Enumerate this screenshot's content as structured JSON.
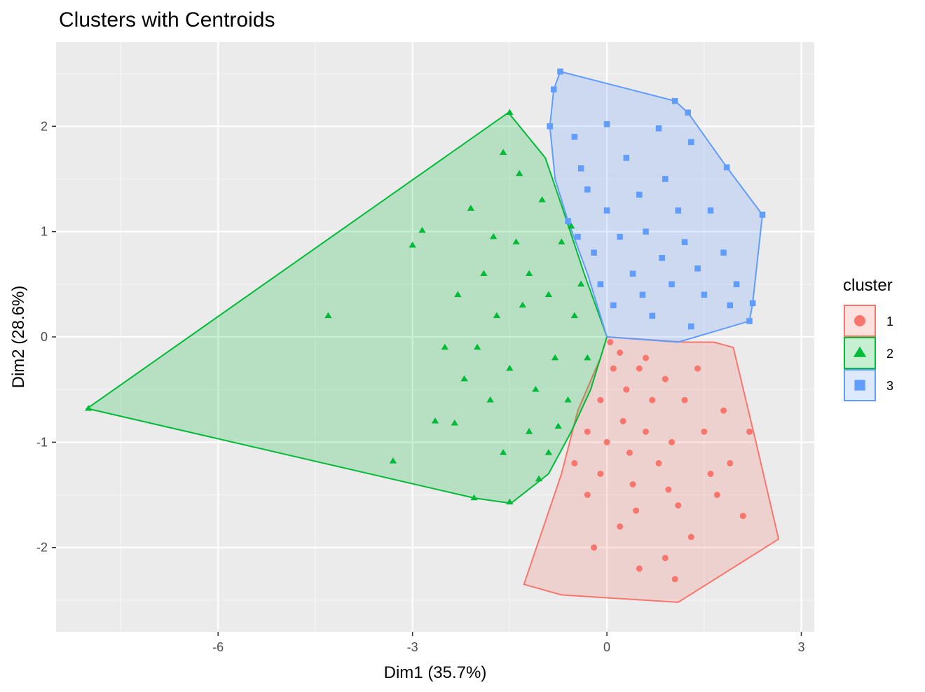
{
  "chart_data": {
    "type": "scatter",
    "title": "Clusters with Centroids",
    "xlabel": "Dim1 (35.7%)",
    "ylabel": "Dim2 (28.6%)",
    "xlim": [
      -8.5,
      3.2
    ],
    "ylim": [
      -2.8,
      2.8
    ],
    "x_ticks": [
      -6,
      -3,
      0,
      3
    ],
    "y_ticks": [
      -2,
      -1,
      0,
      1,
      2
    ],
    "grid": true,
    "legend": {
      "title": "cluster",
      "position": "right"
    },
    "series": [
      {
        "name": "1",
        "shape": "circle",
        "color": "#F8766D",
        "hull": [
          [
            0.0,
            0.0
          ],
          [
            1.2,
            -0.05
          ],
          [
            1.65,
            -0.05
          ],
          [
            1.95,
            -0.1
          ],
          [
            2.3,
            -1.0
          ],
          [
            2.65,
            -1.92
          ],
          [
            1.1,
            -2.52
          ],
          [
            -0.7,
            -2.45
          ],
          [
            -1.28,
            -2.35
          ],
          [
            -0.7,
            -1.3
          ],
          [
            -0.45,
            -0.7
          ],
          [
            -0.1,
            -0.2
          ]
        ],
        "points": [
          [
            0.05,
            -0.05
          ],
          [
            0.2,
            -0.15
          ],
          [
            0.5,
            -0.3
          ],
          [
            0.9,
            -0.4
          ],
          [
            1.2,
            -0.6
          ],
          [
            0.3,
            -0.5
          ],
          [
            -0.1,
            -0.6
          ],
          [
            0.6,
            -0.9
          ],
          [
            1.5,
            -0.9
          ],
          [
            0.0,
            -1.0
          ],
          [
            0.8,
            -1.2
          ],
          [
            1.9,
            -1.2
          ],
          [
            0.4,
            -1.4
          ],
          [
            1.1,
            -1.6
          ],
          [
            1.7,
            -1.5
          ],
          [
            -0.3,
            -1.5
          ],
          [
            -0.5,
            -1.2
          ],
          [
            0.2,
            -1.8
          ],
          [
            1.3,
            -1.9
          ],
          [
            -0.2,
            -2.0
          ],
          [
            0.9,
            -2.1
          ],
          [
            2.1,
            -1.7
          ],
          [
            0.5,
            -2.2
          ],
          [
            1.05,
            -2.3
          ],
          [
            0.6,
            -0.2
          ],
          [
            1.4,
            -0.3
          ],
          [
            0.1,
            -0.3
          ],
          [
            1.8,
            -0.7
          ],
          [
            0.25,
            -0.8
          ],
          [
            -0.3,
            -0.9
          ],
          [
            0.7,
            -0.6
          ],
          [
            1.0,
            -1.0
          ],
          [
            1.6,
            -1.3
          ],
          [
            0.35,
            -1.1
          ],
          [
            -0.1,
            -1.3
          ],
          [
            0.95,
            -1.45
          ],
          [
            2.2,
            -0.9
          ],
          [
            0.45,
            -1.65
          ]
        ]
      },
      {
        "name": "2",
        "shape": "triangle",
        "color": "#00BA38",
        "hull": [
          [
            -1.52,
            2.13
          ],
          [
            -0.95,
            1.7
          ],
          [
            -0.7,
            1.25
          ],
          [
            -0.35,
            0.6
          ],
          [
            0.0,
            0.0
          ],
          [
            -0.25,
            -0.5
          ],
          [
            -0.55,
            -0.9
          ],
          [
            -0.9,
            -1.3
          ],
          [
            -1.48,
            -1.58
          ],
          [
            -2.05,
            -1.53
          ],
          [
            -8.02,
            -0.68
          ]
        ],
        "points": [
          [
            -8.0,
            -0.68
          ],
          [
            -4.3,
            0.2
          ],
          [
            -3.3,
            -1.18
          ],
          [
            -3.0,
            0.87
          ],
          [
            -2.85,
            1.01
          ],
          [
            -2.65,
            -0.8
          ],
          [
            -2.35,
            -0.82
          ],
          [
            -2.05,
            -1.53
          ],
          [
            -1.5,
            -1.57
          ],
          [
            -1.5,
            2.13
          ],
          [
            -1.6,
            1.75
          ],
          [
            -2.1,
            1.22
          ],
          [
            -1.9,
            0.6
          ],
          [
            -1.7,
            0.2
          ],
          [
            -2.0,
            -0.1
          ],
          [
            -1.3,
            0.3
          ],
          [
            -1.1,
            -0.5
          ],
          [
            -0.9,
            -1.1
          ],
          [
            -1.2,
            -0.9
          ],
          [
            -0.7,
            0.9
          ],
          [
            -0.5,
            0.2
          ],
          [
            -0.3,
            -0.2
          ],
          [
            -0.8,
            -0.2
          ],
          [
            -1.0,
            1.3
          ],
          [
            -1.4,
            0.9
          ],
          [
            -2.3,
            0.4
          ],
          [
            -2.5,
            -0.1
          ],
          [
            -1.8,
            -0.6
          ],
          [
            -1.6,
            -1.1
          ],
          [
            -0.6,
            -0.6
          ],
          [
            -1.2,
            0.6
          ],
          [
            -0.9,
            0.4
          ],
          [
            -0.4,
            0.5
          ],
          [
            -1.5,
            -0.3
          ],
          [
            -2.2,
            -0.4
          ],
          [
            -1.05,
            -1.35
          ],
          [
            -0.75,
            -0.85
          ],
          [
            -1.35,
            1.55
          ],
          [
            -0.55,
            1.05
          ],
          [
            -1.75,
            0.95
          ]
        ]
      },
      {
        "name": "3",
        "shape": "square",
        "color": "#619CFF",
        "hull": [
          [
            -0.72,
            2.52
          ],
          [
            1.05,
            2.24
          ],
          [
            1.25,
            2.13
          ],
          [
            1.85,
            1.61
          ],
          [
            2.4,
            1.16
          ],
          [
            2.25,
            0.32
          ],
          [
            2.2,
            0.15
          ],
          [
            1.1,
            -0.05
          ],
          [
            0.0,
            0.0
          ],
          [
            -0.3,
            0.6
          ],
          [
            -0.6,
            1.1
          ],
          [
            -0.8,
            1.5
          ],
          [
            -0.88,
            2.0
          ],
          [
            -0.82,
            2.35
          ]
        ],
        "points": [
          [
            -0.72,
            2.52
          ],
          [
            -0.82,
            2.35
          ],
          [
            1.05,
            2.24
          ],
          [
            1.25,
            2.13
          ],
          [
            -0.88,
            2.0
          ],
          [
            -0.5,
            1.9
          ],
          [
            0.0,
            2.02
          ],
          [
            0.8,
            1.98
          ],
          [
            1.3,
            1.85
          ],
          [
            1.85,
            1.61
          ],
          [
            2.4,
            1.16
          ],
          [
            2.25,
            0.32
          ],
          [
            2.2,
            0.15
          ],
          [
            -0.4,
            1.6
          ],
          [
            0.3,
            1.7
          ],
          [
            0.9,
            1.5
          ],
          [
            1.6,
            1.2
          ],
          [
            -0.6,
            1.1
          ],
          [
            0.0,
            1.2
          ],
          [
            0.6,
            1.0
          ],
          [
            1.2,
            0.9
          ],
          [
            1.8,
            0.8
          ],
          [
            -0.2,
            0.8
          ],
          [
            0.4,
            0.6
          ],
          [
            1.0,
            0.5
          ],
          [
            1.5,
            0.4
          ],
          [
            2.0,
            0.5
          ],
          [
            0.1,
            0.3
          ],
          [
            0.7,
            0.2
          ],
          [
            1.3,
            0.1
          ],
          [
            -0.3,
            1.4
          ],
          [
            0.5,
            1.35
          ],
          [
            1.4,
            0.65
          ],
          [
            0.2,
            0.95
          ],
          [
            0.85,
            0.75
          ],
          [
            1.9,
            0.3
          ],
          [
            -0.1,
            0.5
          ],
          [
            0.55,
            0.4
          ],
          [
            1.1,
            1.2
          ],
          [
            -0.45,
            0.95
          ]
        ]
      }
    ]
  }
}
